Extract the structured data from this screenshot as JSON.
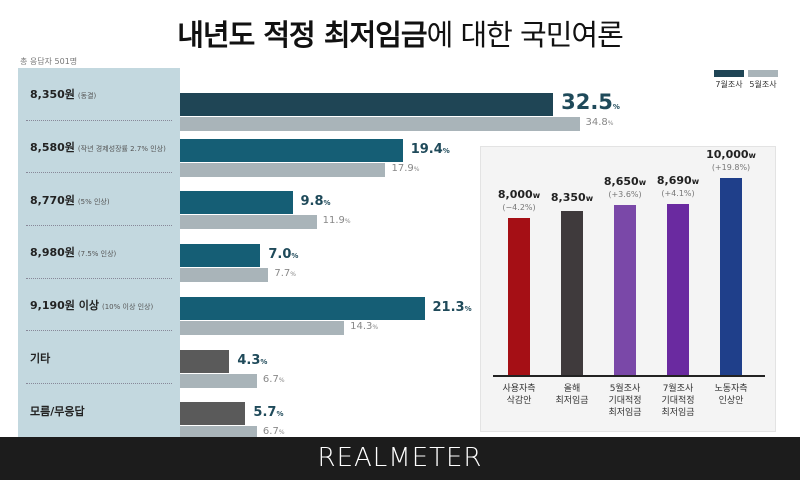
{
  "title_bold": "내년도 적정 최저임금",
  "title_rest": "에 대한 국민여론",
  "respondents": "총 응답자 501명",
  "legend": [
    {
      "label": "7월조사",
      "color": "#1f4555"
    },
    {
      "label": "5월조사",
      "color": "#a9b4b9"
    }
  ],
  "footer": "REALMETER",
  "chart_data": [
    {
      "type": "bar",
      "orientation": "horizontal",
      "title": "내년도 적정 최저임금에 대한 국민여론",
      "categories": [
        "8,350원",
        "8,580원",
        "8,770원",
        "8,980원",
        "9,190원 이상",
        "기타",
        "모름/무응답"
      ],
      "notes": [
        "(동결)",
        "(작년 경제성장률 2.7% 인상)",
        "(5% 인상)",
        "(7.5% 인상)",
        "(10% 이상 인상)",
        "",
        ""
      ],
      "series": [
        {
          "name": "7월조사",
          "values": [
            32.5,
            19.4,
            9.8,
            7.0,
            21.3,
            4.3,
            5.7
          ]
        },
        {
          "name": "5월조사",
          "values": [
            34.8,
            17.9,
            11.9,
            7.7,
            14.3,
            6.7,
            6.7
          ]
        }
      ],
      "unit": "%"
    },
    {
      "type": "bar",
      "categories": [
        "사용자측 삭감안",
        "올해 최저임금",
        "5월조사 기대적정 최저임금",
        "7월조사 기대적정 최저임금",
        "노동자측 인상안"
      ],
      "values": [
        8000,
        8350,
        8650,
        8690,
        10000
      ],
      "labels": [
        "8,000",
        "8,350",
        "8,650",
        "8,690",
        "10,000"
      ],
      "changes": [
        "(−4.2%)",
        "",
        "(+3.6%)",
        "(+4.1%)",
        "(+19.8%)"
      ],
      "unit": "w",
      "colors": [
        "#a50f15",
        "#3f3a3c",
        "#7a48a8",
        "#6a2aa0",
        "#1f3f8a"
      ]
    }
  ]
}
